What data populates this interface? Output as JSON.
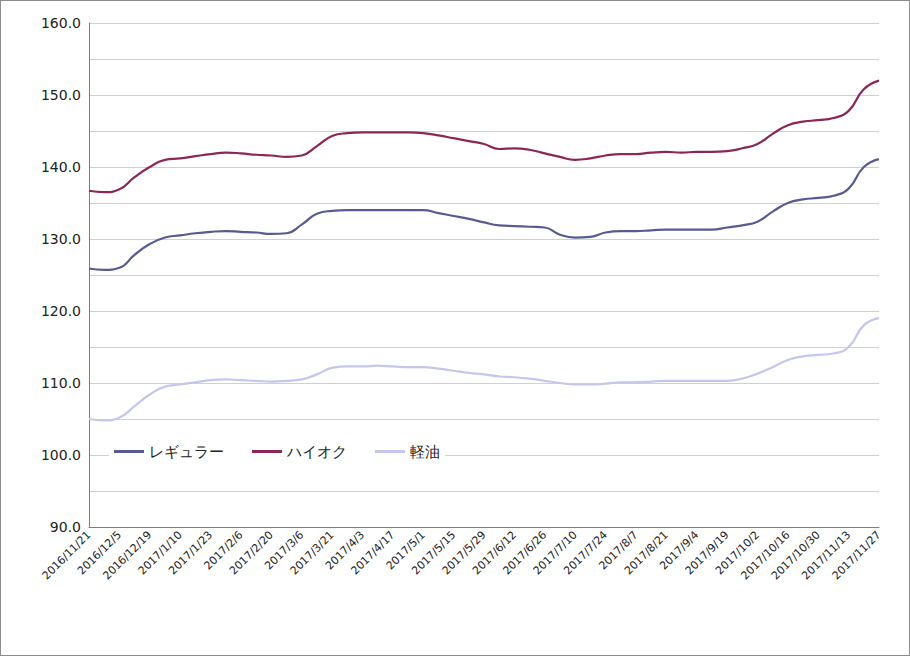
{
  "chart_data": {
    "type": "line",
    "categories": [
      "2016/11/21",
      null,
      "2016/12/5",
      null,
      "2016/12/19",
      null,
      "2017/1/10",
      null,
      "2017/1/23",
      null,
      "2017/2/6",
      null,
      "2017/2/20",
      null,
      "2017/3/6",
      null,
      "2017/3/21",
      null,
      "2017/4/3",
      null,
      "2017/4/17",
      null,
      "2017/5/1",
      null,
      "2017/5/15",
      null,
      "2017/5/29",
      null,
      "2017/6/12",
      null,
      "2017/6/26",
      null,
      "2017/7/10",
      null,
      "2017/7/24",
      null,
      "2017/8/7",
      null,
      "2017/8/21",
      null,
      "2017/9/4",
      null,
      "2017/9/19",
      null,
      "2017/10/2",
      null,
      "2017/10/16",
      null,
      "2017/10/30",
      null,
      "2017/11/13",
      null,
      "2017/11/27"
    ],
    "series": [
      {
        "name": "レギュラー",
        "color": "#575b91",
        "values": [
          125.9,
          125.7,
          126.0,
          127.8,
          129.3,
          130.2,
          130.5,
          130.8,
          131.0,
          131.1,
          131.0,
          130.9,
          130.7,
          130.8,
          132.0,
          133.5,
          133.9,
          134.0,
          134.0,
          134.0,
          134.0,
          134.0,
          134.0,
          133.6,
          133.2,
          132.8,
          132.3,
          131.9,
          131.8,
          131.7,
          131.6,
          130.6,
          130.2,
          130.3,
          130.9,
          131.1,
          131.1,
          131.2,
          131.3,
          131.3,
          131.3,
          131.3,
          131.6,
          131.9,
          132.4,
          133.8,
          135.0,
          135.5,
          135.7,
          136.0,
          137.0,
          140.0,
          141.1
        ]
      },
      {
        "name": "ハイオク",
        "color": "#8c2657",
        "values": [
          136.7,
          136.5,
          136.9,
          138.6,
          140.0,
          141.0,
          141.2,
          141.5,
          141.8,
          142.0,
          141.9,
          141.7,
          141.6,
          141.4,
          141.6,
          142.9,
          144.3,
          144.7,
          144.8,
          144.8,
          144.8,
          144.8,
          144.7,
          144.4,
          144.0,
          143.6,
          143.2,
          142.5,
          142.6,
          142.4,
          141.9,
          141.4,
          141.0,
          141.2,
          141.6,
          141.8,
          141.8,
          142.0,
          142.1,
          142.0,
          142.1,
          142.1,
          142.2,
          142.6,
          143.2,
          144.6,
          145.8,
          146.3,
          146.5,
          146.8,
          147.8,
          150.8,
          152.0
        ]
      },
      {
        "name": "軽油",
        "color": "#c5c6ee",
        "values": [
          105.0,
          104.8,
          105.2,
          106.8,
          108.4,
          109.5,
          109.8,
          110.1,
          110.4,
          110.5,
          110.4,
          110.3,
          110.2,
          110.3,
          110.5,
          111.2,
          112.1,
          112.3,
          112.3,
          112.4,
          112.3,
          112.2,
          112.2,
          112.0,
          111.7,
          111.4,
          111.2,
          110.9,
          110.8,
          110.6,
          110.3,
          110.0,
          109.8,
          109.8,
          109.9,
          110.1,
          110.1,
          110.2,
          110.3,
          110.3,
          110.3,
          110.3,
          110.3,
          110.6,
          111.3,
          112.2,
          113.2,
          113.7,
          113.9,
          114.1,
          115.0,
          118.0,
          119.0
        ]
      }
    ],
    "ylim": [
      90,
      160
    ],
    "yticks": [
      {
        "value": 90,
        "label": "90.0"
      },
      {
        "value": 100,
        "label": "100.0"
      },
      {
        "value": 110,
        "label": "110.0"
      },
      {
        "value": 120,
        "label": "120.0"
      },
      {
        "value": 130,
        "label": "130.0"
      },
      {
        "value": 140,
        "label": "140.0"
      },
      {
        "value": 150,
        "label": "150.0"
      },
      {
        "value": 160,
        "label": "160.0"
      }
    ],
    "grid": true,
    "legend": "left"
  }
}
